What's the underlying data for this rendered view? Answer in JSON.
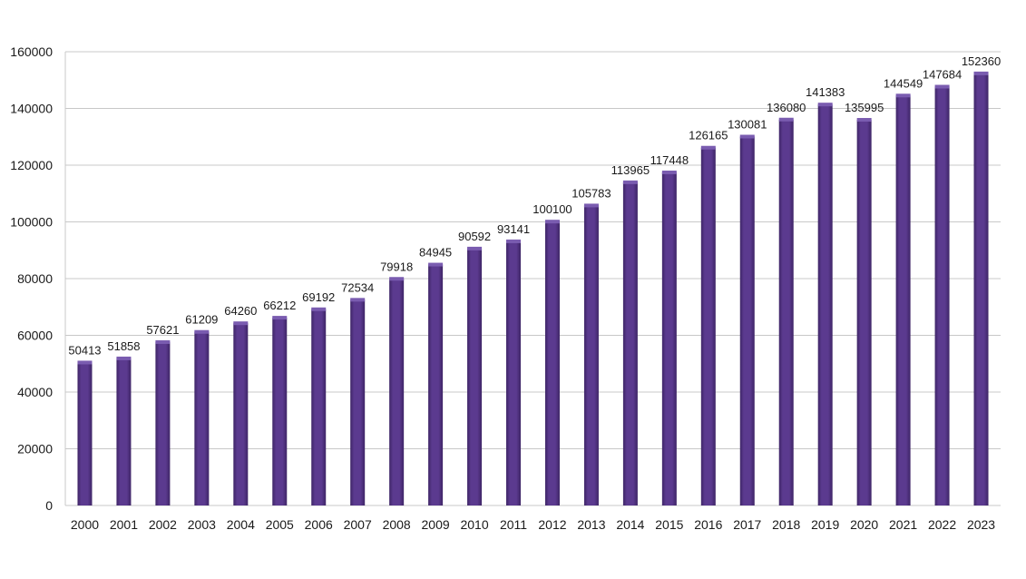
{
  "chart_data": {
    "type": "bar",
    "title": "",
    "xlabel": "",
    "ylabel": "",
    "categories": [
      "2000",
      "2001",
      "2002",
      "2003",
      "2004",
      "2005",
      "2006",
      "2007",
      "2008",
      "2009",
      "2010",
      "2011",
      "2012",
      "2013",
      "2014",
      "2015",
      "2016",
      "2017",
      "2018",
      "2019",
      "2020",
      "2021",
      "2022",
      "2023"
    ],
    "values": [
      50413,
      51858,
      57621,
      61209,
      64260,
      66212,
      69192,
      72534,
      79918,
      84945,
      90592,
      93141,
      100100,
      105783,
      113965,
      117448,
      126165,
      130081,
      136080,
      141383,
      135995,
      144549,
      147684,
      152360
    ],
    "ylim": [
      0,
      160000
    ],
    "yticks": [
      0,
      20000,
      40000,
      60000,
      80000,
      100000,
      120000,
      140000,
      160000
    ],
    "grid": true,
    "legend": "none",
    "colors": {
      "bar_fill": "#5b3a8f",
      "bar_top": "#7a5cb0",
      "bar_edge": "#3e2566",
      "grid": "#c8c8c8"
    }
  }
}
